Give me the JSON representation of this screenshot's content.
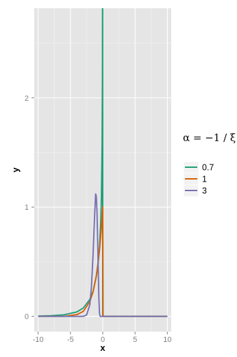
{
  "chart_data": {
    "type": "line",
    "xlabel": "x",
    "ylabel": "y",
    "xlim": [
      -10.6,
      10.6
    ],
    "ylim": [
      -0.14,
      2.82
    ],
    "x_ticks": [
      -10,
      -5,
      0,
      5,
      10
    ],
    "x_tick_labels": [
      "-10",
      "-5",
      "0",
      "5",
      "10"
    ],
    "y_ticks": [
      0,
      1,
      2
    ],
    "y_tick_labels": [
      "0",
      "1",
      "2"
    ],
    "grid": true,
    "background": "#e5e5e5",
    "legend": {
      "title": "α = −1 / ξ",
      "placement": "right",
      "entries": [
        {
          "label": "0.7",
          "color": "#1b9e77"
        },
        {
          "label": "1",
          "color": "#d95f02"
        },
        {
          "label": "3",
          "color": "#7570b3"
        }
      ]
    },
    "series": [
      {
        "name": "0.7",
        "color": "#1b9e77",
        "alpha": 0.7,
        "x": [
          -10,
          -8,
          -6,
          -4,
          -3,
          -2,
          -1.5,
          -1,
          -0.7,
          -0.5,
          -0.3,
          -0.2,
          -0.1,
          -0.05,
          -0.02,
          0,
          0.05,
          2,
          4,
          6,
          8,
          10
        ],
        "y": [
          0.003,
          0.006,
          0.014,
          0.041,
          0.077,
          0.155,
          0.229,
          0.366,
          0.5,
          0.636,
          0.879,
          1.1,
          1.59,
          2.2,
          3.5,
          0,
          0,
          0,
          0,
          0,
          0,
          0
        ]
      },
      {
        "name": "1",
        "color": "#d95f02",
        "alpha": 1,
        "x": [
          -10,
          -8,
          -6,
          -4,
          -3,
          -2,
          -1.5,
          -1,
          -0.7,
          -0.5,
          -0.3,
          -0.2,
          -0.1,
          -0.05,
          0,
          0.05,
          2,
          4,
          6,
          8,
          10
        ],
        "y": [
          0.0,
          0.0,
          0.0,
          0.016,
          0.046,
          0.135,
          0.223,
          0.368,
          0.497,
          0.607,
          0.741,
          0.819,
          0.905,
          0.951,
          1.0,
          0,
          0,
          0,
          0,
          0,
          0
        ]
      },
      {
        "name": "3",
        "color": "#7570b3",
        "alpha": 3,
        "x": [
          -10,
          -3,
          -2.5,
          -2,
          -1.75,
          -1.5,
          -1.25,
          -1.1,
          -1,
          -0.9,
          -0.8,
          -0.7,
          -0.6,
          -0.5,
          -0.4,
          -0.3,
          -0.2,
          -0.1,
          0,
          0.05,
          2,
          4,
          6,
          8,
          10
        ],
        "y": [
          0,
          0.0,
          0.013,
          0.105,
          0.27,
          0.563,
          0.933,
          1.12,
          1.1,
          0.974,
          0.737,
          0.436,
          0.166,
          0.025,
          0.0,
          0.0,
          0.0,
          0.0,
          0.0,
          0,
          0,
          0,
          0,
          0,
          0
        ]
      }
    ]
  }
}
